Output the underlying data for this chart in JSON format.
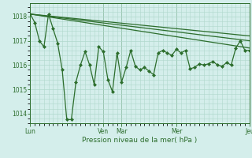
{
  "background_color": "#d4eeeb",
  "grid_color": "#b0d8cc",
  "line_color": "#2d6e2d",
  "marker_color": "#2d6e2d",
  "xlabel": "Pression niveau de la mer( hPa )",
  "xlabel_color": "#2d6e2d",
  "tick_color": "#2d6e2d",
  "ylim": [
    1013.6,
    1018.55
  ],
  "yticks": [
    1014,
    1015,
    1016,
    1017,
    1018
  ],
  "xlim": [
    0,
    48
  ],
  "day_positions": [
    0,
    16,
    20,
    32,
    48
  ],
  "day_labels": [
    "Lun",
    "Ven",
    "Mar",
    "Mer",
    "Jeu"
  ],
  "trend1_x": [
    0,
    48
  ],
  "trend1_y": [
    1018.1,
    1016.7
  ],
  "trend2_x": [
    0,
    48
  ],
  "trend2_y": [
    1018.1,
    1017.0
  ],
  "trend3_x": [
    0,
    48
  ],
  "trend3_y": [
    1018.1,
    1017.2
  ],
  "main_x": [
    0,
    1,
    2,
    3,
    4,
    5,
    6,
    7,
    8,
    9,
    10,
    11,
    12,
    13,
    14,
    15,
    16,
    17,
    18,
    19,
    20,
    21,
    22,
    23,
    24,
    25,
    26,
    27,
    28,
    29,
    30,
    31,
    32,
    33,
    34,
    35,
    36,
    37,
    38,
    39,
    40,
    41,
    42,
    43,
    44,
    45,
    46,
    47,
    48
  ],
  "main_y": [
    1018.1,
    1017.75,
    1017.0,
    1016.75,
    1018.1,
    1017.5,
    1016.9,
    1015.8,
    1013.75,
    1013.75,
    1015.3,
    1016.0,
    1016.55,
    1016.0,
    1015.2,
    1016.75,
    1016.55,
    1015.4,
    1014.9,
    1016.5,
    1015.3,
    1015.9,
    1016.6,
    1015.95,
    1015.8,
    1015.9,
    1015.75,
    1015.6,
    1016.5,
    1016.6,
    1016.5,
    1016.4,
    1016.65,
    1016.5,
    1016.6,
    1015.85,
    1015.9,
    1016.05,
    1016.0,
    1016.05,
    1016.15,
    1016.0,
    1015.95,
    1016.1,
    1016.0,
    1016.7,
    1017.0,
    1016.6,
    1016.6
  ]
}
